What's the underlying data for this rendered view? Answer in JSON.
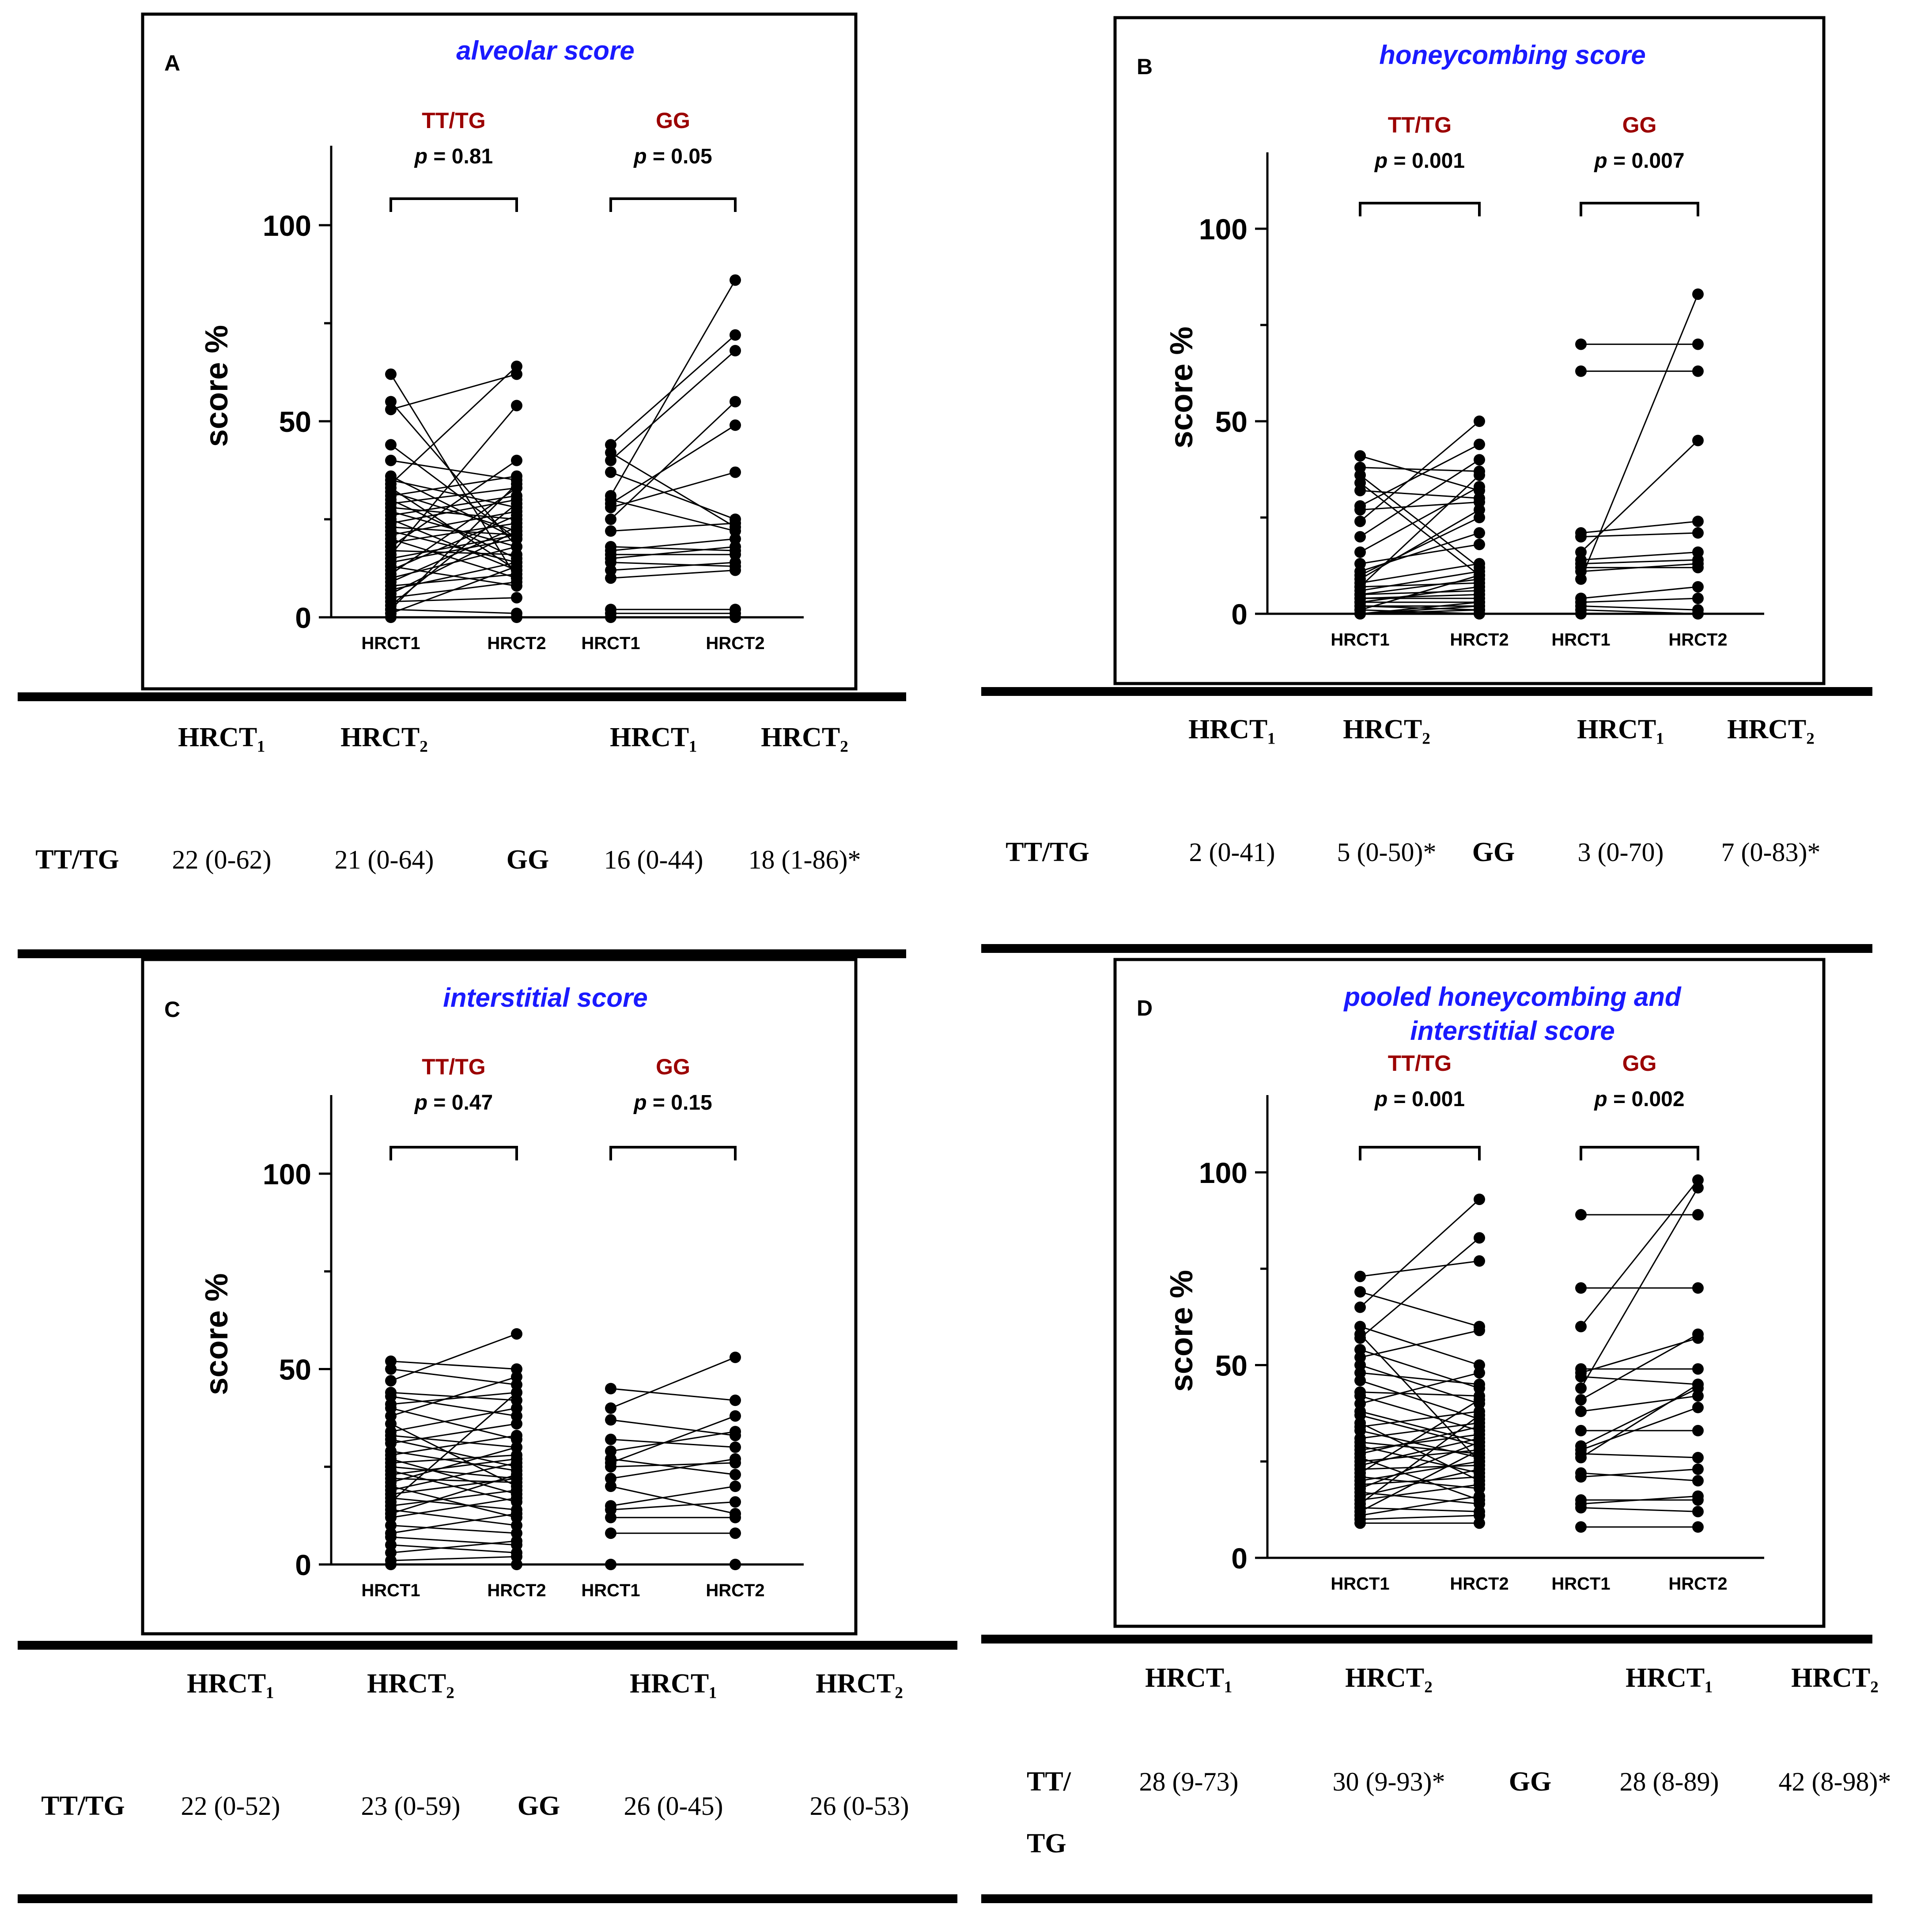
{
  "panels": [
    {
      "letter": "A",
      "title": "alveolar score",
      "title_line2": "",
      "ylabel": "score %",
      "yticks": [
        "0",
        "50",
        "100"
      ],
      "groups": [
        {
          "name": "TT/TG",
          "p": "p = 0.81"
        },
        {
          "name": "GG",
          "p": "p = 0.05"
        }
      ],
      "xticks": [
        "HRCT1",
        "HRCT2",
        "HRCT1",
        "HRCT2"
      ],
      "table": {
        "headers": [
          "HRCT₁",
          "HRCT₂",
          "HRCT₁",
          "HRCT₂"
        ],
        "row_a_label": [
          "TT/TG"
        ],
        "row_a": [
          "22 (0-62)",
          "21 (0-64)"
        ],
        "row_b_label": "GG",
        "row_b": [
          "16 (0-44)",
          "18 (1-86)*"
        ]
      }
    },
    {
      "letter": "B",
      "title": "honeycombing score",
      "title_line2": "",
      "ylabel": "score %",
      "yticks": [
        "0",
        "50",
        "100"
      ],
      "groups": [
        {
          "name": "TT/TG",
          "p": "p = 0.001"
        },
        {
          "name": "GG",
          "p": "p = 0.007"
        }
      ],
      "xticks": [
        "HRCT1",
        "HRCT2",
        "HRCT1",
        "HRCT2"
      ],
      "table": {
        "headers": [
          "HRCT₁",
          "HRCT₂",
          "HRCT₁",
          "HRCT₂"
        ],
        "row_a_label": [
          "TT/TG"
        ],
        "row_a": [
          "2 (0-41)",
          "5 (0-50)*"
        ],
        "row_b_label": "GG",
        "row_b": [
          "3 (0-70)",
          "7 (0-83)*"
        ]
      }
    },
    {
      "letter": "C",
      "title": "interstitial score",
      "title_line2": "",
      "ylabel": "score %",
      "yticks": [
        "0",
        "50",
        "100"
      ],
      "groups": [
        {
          "name": "TT/TG",
          "p": "p = 0.47"
        },
        {
          "name": "GG",
          "p": "p = 0.15"
        }
      ],
      "xticks": [
        "HRCT1",
        "HRCT2",
        "HRCT1",
        "HRCT2"
      ],
      "table": {
        "headers": [
          "HRCT₁",
          "HRCT₂",
          "HRCT₁",
          "HRCT₂"
        ],
        "row_a_label": [
          "TT/TG"
        ],
        "row_a": [
          "22 (0-52)",
          "23 (0-59)"
        ],
        "row_b_label": "GG",
        "row_b": [
          "26 (0-45)",
          "26 (0-53)"
        ]
      }
    },
    {
      "letter": "D",
      "title": "pooled honeycombing and",
      "title_line2": "interstitial score",
      "ylabel": "score %",
      "yticks": [
        "0",
        "50",
        "100"
      ],
      "groups": [
        {
          "name": "TT/TG",
          "p": "p = 0.001"
        },
        {
          "name": "GG",
          "p": "p = 0.002"
        }
      ],
      "xticks": [
        "HRCT1",
        "HRCT2",
        "HRCT1",
        "HRCT2"
      ],
      "table": {
        "headers": [
          "HRCT₁",
          "HRCT₂",
          "HRCT₁",
          "HRCT₂"
        ],
        "row_a_label": [
          "TT/",
          "TG"
        ],
        "row_a": [
          "28 (9-73)",
          "30 (9-93)*"
        ],
        "row_b_label": "GG",
        "row_b": [
          "28 (8-89)",
          "42 (8-98)*"
        ]
      }
    }
  ],
  "colors": {
    "title": "#1a1aff",
    "group": "#9b0000",
    "ink": "#000000"
  },
  "chart_data": [
    {
      "type": "line",
      "title": "alveolar score",
      "ylabel": "score %",
      "ylim": [
        0,
        120
      ],
      "categories": [
        "HRCT1",
        "HRCT2"
      ],
      "series": [
        {
          "name": "TT/TG",
          "pairs": [
            [
              62,
              10
            ],
            [
              55,
              18
            ],
            [
              53,
              62
            ],
            [
              44,
              20
            ],
            [
              40,
              35
            ],
            [
              36,
              20
            ],
            [
              35,
              28
            ],
            [
              34,
              64
            ],
            [
              33,
              12
            ],
            [
              32,
              22
            ],
            [
              31,
              36
            ],
            [
              30,
              15
            ],
            [
              29,
              33
            ],
            [
              28,
              25
            ],
            [
              27,
              18
            ],
            [
              26,
              31
            ],
            [
              25,
              12
            ],
            [
              24,
              30
            ],
            [
              23,
              21
            ],
            [
              22,
              14
            ],
            [
              21,
              27
            ],
            [
              20,
              10
            ],
            [
              19,
              24
            ],
            [
              18,
              40
            ],
            [
              17,
              16
            ],
            [
              16,
              54
            ],
            [
              15,
              21
            ],
            [
              14,
              20
            ],
            [
              13,
              8
            ],
            [
              12,
              26
            ],
            [
              11,
              33
            ],
            [
              10,
              18
            ],
            [
              9,
              23
            ],
            [
              8,
              11
            ],
            [
              7,
              14
            ],
            [
              6,
              22
            ],
            [
              5,
              9
            ],
            [
              4,
              5
            ],
            [
              3,
              29
            ],
            [
              2,
              34
            ],
            [
              1,
              13
            ],
            [
              0,
              0
            ],
            [
              2,
              1
            ]
          ]
        },
        {
          "name": "GG",
          "pairs": [
            [
              44,
              72
            ],
            [
              42,
              23
            ],
            [
              40,
              68
            ],
            [
              37,
              25
            ],
            [
              31,
              86
            ],
            [
              30,
              22
            ],
            [
              29,
              49
            ],
            [
              28,
              37
            ],
            [
              25,
              55
            ],
            [
              22,
              24
            ],
            [
              18,
              17
            ],
            [
              17,
              20
            ],
            [
              16,
              16
            ],
            [
              15,
              18
            ],
            [
              14,
              13
            ],
            [
              12,
              14
            ],
            [
              10,
              12
            ],
            [
              2,
              2
            ],
            [
              1,
              1
            ],
            [
              0,
              0
            ]
          ]
        }
      ]
    },
    {
      "type": "line",
      "title": "honeycombing score",
      "ylabel": "score %",
      "ylim": [
        0,
        120
      ],
      "categories": [
        "HRCT1",
        "HRCT2"
      ],
      "series": [
        {
          "name": "TT/TG",
          "pairs": [
            [
              41,
              32
            ],
            [
              38,
              37
            ],
            [
              36,
              12
            ],
            [
              34,
              10
            ],
            [
              32,
              30
            ],
            [
              28,
              44
            ],
            [
              27,
              29
            ],
            [
              24,
              50
            ],
            [
              20,
              40
            ],
            [
              16,
              33
            ],
            [
              13,
              18
            ],
            [
              11,
              21
            ],
            [
              10,
              25
            ],
            [
              9,
              27
            ],
            [
              8,
              13
            ],
            [
              7,
              36
            ],
            [
              7,
              8
            ],
            [
              6,
              11
            ],
            [
              5,
              9
            ],
            [
              5,
              6
            ],
            [
              4,
              5
            ],
            [
              4,
              4
            ],
            [
              3,
              3
            ],
            [
              3,
              7
            ],
            [
              2,
              2
            ],
            [
              2,
              1
            ],
            [
              1,
              0
            ],
            [
              1,
              10
            ],
            [
              0,
              0
            ],
            [
              0,
              1
            ],
            [
              0,
              3
            ],
            [
              0,
              2
            ]
          ]
        },
        {
          "name": "GG",
          "pairs": [
            [
              70,
              70
            ],
            [
              63,
              63
            ],
            [
              21,
              24
            ],
            [
              20,
              21
            ],
            [
              16,
              45
            ],
            [
              14,
              16
            ],
            [
              13,
              14
            ],
            [
              12,
              12
            ],
            [
              11,
              13
            ],
            [
              9,
              83
            ],
            [
              4,
              7
            ],
            [
              3,
              4
            ],
            [
              2,
              1
            ],
            [
              1,
              0
            ],
            [
              0,
              0
            ]
          ]
        }
      ]
    },
    {
      "type": "line",
      "title": "interstitial score",
      "ylabel": "score %",
      "ylim": [
        0,
        120
      ],
      "categories": [
        "HRCT1",
        "HRCT2"
      ],
      "series": [
        {
          "name": "TT/TG",
          "pairs": [
            [
              52,
              50
            ],
            [
              50,
              46
            ],
            [
              47,
              59
            ],
            [
              44,
              42
            ],
            [
              43,
              38
            ],
            [
              41,
              44
            ],
            [
              40,
              32
            ],
            [
              38,
              48
            ],
            [
              36,
              20
            ],
            [
              34,
              40
            ],
            [
              33,
              30
            ],
            [
              32,
              25
            ],
            [
              31,
              36
            ],
            [
              29,
              24
            ],
            [
              28,
              33
            ],
            [
              27,
              18
            ],
            [
              26,
              28
            ],
            [
              25,
              22
            ],
            [
              24,
              16
            ],
            [
              23,
              27
            ],
            [
              22,
              21
            ],
            [
              21,
              30
            ],
            [
              20,
              12
            ],
            [
              19,
              26
            ],
            [
              18,
              22
            ],
            [
              17,
              14
            ],
            [
              16,
              44
            ],
            [
              15,
              19
            ],
            [
              14,
              10
            ],
            [
              13,
              23
            ],
            [
              12,
              17
            ],
            [
              10,
              8
            ],
            [
              8,
              13
            ],
            [
              7,
              5
            ],
            [
              5,
              3
            ],
            [
              3,
              6
            ],
            [
              1,
              2
            ],
            [
              0,
              0
            ]
          ]
        },
        {
          "name": "GG",
          "pairs": [
            [
              45,
              42
            ],
            [
              40,
              53
            ],
            [
              37,
              33
            ],
            [
              32,
              30
            ],
            [
              29,
              34
            ],
            [
              27,
              23
            ],
            [
              26,
              38
            ],
            [
              25,
              26
            ],
            [
              22,
              27
            ],
            [
              20,
              13
            ],
            [
              15,
              20
            ],
            [
              14,
              16
            ],
            [
              12,
              12
            ],
            [
              8,
              8
            ],
            [
              0,
              0
            ]
          ]
        }
      ]
    },
    {
      "type": "line",
      "title": "pooled honeycombing and interstitial score",
      "ylabel": "score %",
      "ylim": [
        0,
        120
      ],
      "categories": [
        "HRCT1",
        "HRCT2"
      ],
      "series": [
        {
          "name": "TT/TG",
          "pairs": [
            [
              73,
              77
            ],
            [
              69,
              60
            ],
            [
              65,
              93
            ],
            [
              60,
              50
            ],
            [
              58,
              25
            ],
            [
              57,
              83
            ],
            [
              54,
              44
            ],
            [
              52,
              59
            ],
            [
              50,
              40
            ],
            [
              48,
              45
            ],
            [
              46,
              36
            ],
            [
              43,
              42
            ],
            [
              42,
              33
            ],
            [
              40,
              48
            ],
            [
              38,
              30
            ],
            [
              37,
              29
            ],
            [
              35,
              20
            ],
            [
              34,
              38
            ],
            [
              33,
              26
            ],
            [
              31,
              35
            ],
            [
              30,
              27
            ],
            [
              29,
              22
            ],
            [
              28,
              32
            ],
            [
              27,
              34
            ],
            [
              26,
              15
            ],
            [
              25,
              28
            ],
            [
              24,
              31
            ],
            [
              23,
              24
            ],
            [
              22,
              41
            ],
            [
              21,
              18
            ],
            [
              20,
              25
            ],
            [
              19,
              21
            ],
            [
              18,
              30
            ],
            [
              17,
              14
            ],
            [
              16,
              23
            ],
            [
              15,
              19
            ],
            [
              14,
              37
            ],
            [
              13,
              12
            ],
            [
              12,
              28
            ],
            [
              11,
              16
            ],
            [
              10,
              11
            ],
            [
              9,
              9
            ]
          ]
        },
        {
          "name": "GG",
          "pairs": [
            [
              89,
              89
            ],
            [
              70,
              70
            ],
            [
              60,
              98
            ],
            [
              49,
              49
            ],
            [
              48,
              57
            ],
            [
              47,
              45
            ],
            [
              44,
              96
            ],
            [
              41,
              58
            ],
            [
              38,
              42
            ],
            [
              33,
              33
            ],
            [
              29,
              44
            ],
            [
              28,
              39
            ],
            [
              27,
              26
            ],
            [
              26,
              45
            ],
            [
              22,
              20
            ],
            [
              21,
              23
            ],
            [
              15,
              15
            ],
            [
              14,
              16
            ],
            [
              13,
              12
            ],
            [
              8,
              8
            ]
          ]
        }
      ]
    }
  ]
}
